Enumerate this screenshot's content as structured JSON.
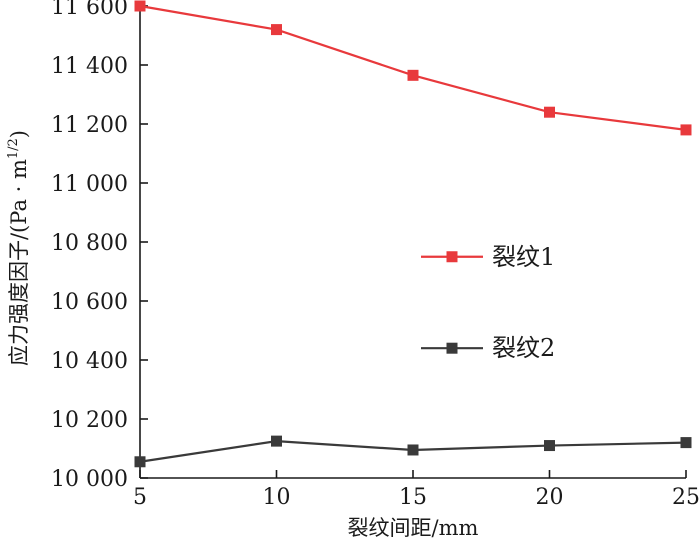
{
  "chart_data": {
    "type": "line",
    "xlabel": "裂纹间距/mm",
    "ylabel": "应力强度因子/(Pa · m",
    "ylabel_sup": "1/2",
    "ylabel_close": ")",
    "xlim": [
      5,
      25
    ],
    "ylim": [
      10000,
      11600
    ],
    "xticks": [
      5,
      10,
      15,
      20,
      25
    ],
    "xtick_labels": [
      "5",
      "10",
      "15",
      "20",
      "25"
    ],
    "yticks": [
      10000,
      10200,
      10400,
      10600,
      10800,
      11000,
      11200,
      11400,
      11600
    ],
    "ytick_labels": [
      "10 000",
      "10 200",
      "10 400",
      "10 600",
      "10 800",
      "11 000",
      "11 200",
      "11 400",
      "11 600"
    ],
    "grid": false,
    "legend_position": "right",
    "x": [
      5,
      10,
      15,
      20,
      25
    ],
    "series": [
      {
        "name": "裂纹1",
        "color": "#e8393c",
        "marker": "square",
        "values": [
          11600,
          11520,
          11365,
          11240,
          11180
        ]
      },
      {
        "name": "裂纹2",
        "color": "#3a3a3a",
        "marker": "square",
        "values": [
          10055,
          10125,
          10095,
          10110,
          10120
        ]
      }
    ]
  }
}
